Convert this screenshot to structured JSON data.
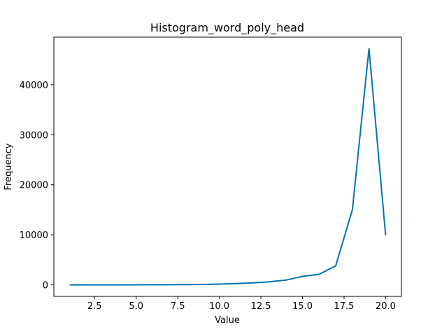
{
  "chart_data": {
    "type": "line",
    "title": "Histogram_word_poly_head",
    "xlabel": "Value",
    "ylabel": "Frequency",
    "xlim": [
      0.05,
      20.95
    ],
    "ylim": [
      -2300,
      49500
    ],
    "xticks": [
      2.5,
      5.0,
      7.5,
      10.0,
      12.5,
      15.0,
      17.5,
      20.0
    ],
    "xtick_labels": [
      "2.5",
      "5.0",
      "7.5",
      "10.0",
      "12.5",
      "15.0",
      "17.5",
      "20.0"
    ],
    "yticks": [
      0,
      10000,
      20000,
      30000,
      40000
    ],
    "ytick_labels": [
      "0",
      "10000",
      "20000",
      "30000",
      "40000"
    ],
    "grid": false,
    "series": [
      {
        "color": "#0072B2",
        "x": [
          1,
          2,
          3,
          4,
          5,
          6,
          7,
          8,
          9,
          10,
          11,
          12,
          13,
          14,
          15,
          16,
          17,
          18,
          19,
          20
        ],
        "values": [
          0,
          0,
          0,
          0,
          10,
          20,
          30,
          50,
          80,
          150,
          250,
          400,
          600,
          950,
          1700,
          2100,
          3800,
          15000,
          47200,
          9900
        ]
      }
    ]
  }
}
